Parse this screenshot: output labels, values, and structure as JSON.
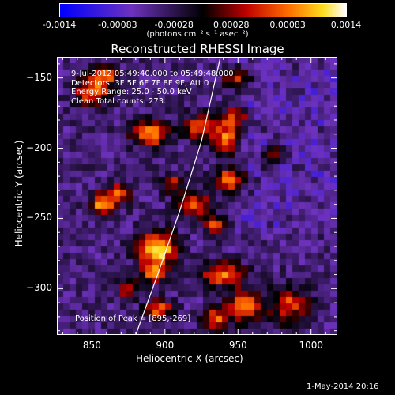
{
  "colorbar": {
    "ticks": [
      "-0.0014",
      "-0.00083",
      "-0.00028",
      "0.00028",
      "0.00083",
      "0.0014"
    ],
    "units_text": "(photons cm⁻² s⁻¹ asec⁻²)"
  },
  "chart_data": {
    "type": "heatmap",
    "title": "Reconstructed RHESSI Image",
    "xlabel": "Heliocentric X (arcsec)",
    "ylabel": "Heliocentric Y (arcsec)",
    "xlim": [
      826,
      1018
    ],
    "ylim": [
      -333,
      -135
    ],
    "x_ticks": [
      "850",
      "900",
      "950",
      "1000"
    ],
    "y_ticks": [
      "-150",
      "-200",
      "-250",
      "-300"
    ],
    "colorbar_range": [
      -0.0014,
      0.0014
    ],
    "colormap": "blue-purple-black-red-yellow-white",
    "peak": [
      895,
      -269
    ],
    "limb_curve": [
      [
        880,
        -333
      ],
      [
        895,
        -290
      ],
      [
        910,
        -245
      ],
      [
        925,
        -195
      ],
      [
        938,
        -135
      ]
    ],
    "blobs": [
      {
        "x": 895,
        "y": -272,
        "sx": 9,
        "sy": 8,
        "v": 0.0014
      },
      {
        "x": 892,
        "y": -289,
        "sx": 6,
        "sy": 5,
        "v": 0.0009
      },
      {
        "x": 896,
        "y": -315,
        "sx": 6,
        "sy": 5,
        "v": 0.0009
      },
      {
        "x": 890,
        "y": -190,
        "sx": 9,
        "sy": 6,
        "v": 0.001
      },
      {
        "x": 925,
        "y": -185,
        "sx": 8,
        "sy": 6,
        "v": 0.0009
      },
      {
        "x": 942,
        "y": -195,
        "sx": 6,
        "sy": 6,
        "v": 0.0009
      },
      {
        "x": 948,
        "y": -180,
        "sx": 6,
        "sy": 6,
        "v": 0.0008
      },
      {
        "x": 858,
        "y": -240,
        "sx": 6,
        "sy": 6,
        "v": 0.0011
      },
      {
        "x": 870,
        "y": -232,
        "sx": 5,
        "sy": 5,
        "v": 0.0008
      },
      {
        "x": 945,
        "y": -222,
        "sx": 7,
        "sy": 6,
        "v": 0.0009
      },
      {
        "x": 920,
        "y": -240,
        "sx": 8,
        "sy": 6,
        "v": 0.0008
      },
      {
        "x": 935,
        "y": -255,
        "sx": 5,
        "sy": 5,
        "v": 0.0007
      },
      {
        "x": 940,
        "y": -290,
        "sx": 10,
        "sy": 6,
        "v": 0.0009
      },
      {
        "x": 955,
        "y": -312,
        "sx": 8,
        "sy": 8,
        "v": 0.0009
      },
      {
        "x": 935,
        "y": -322,
        "sx": 6,
        "sy": 6,
        "v": 0.0008
      },
      {
        "x": 985,
        "y": -312,
        "sx": 9,
        "sy": 9,
        "v": 0.0007
      },
      {
        "x": 850,
        "y": -160,
        "sx": 8,
        "sy": 7,
        "v": 0.0009
      },
      {
        "x": 860,
        "y": -148,
        "sx": 6,
        "sy": 5,
        "v": 0.0008
      },
      {
        "x": 950,
        "y": -150,
        "sx": 6,
        "sy": 5,
        "v": 0.0007
      },
      {
        "x": 975,
        "y": -205,
        "sx": 5,
        "sy": 5,
        "v": 0.0005
      },
      {
        "x": 905,
        "y": -225,
        "sx": 5,
        "sy": 5,
        "v": 0.0006
      },
      {
        "x": 875,
        "y": -300,
        "sx": 5,
        "sy": 5,
        "v": 0.0005
      }
    ]
  },
  "annotations": {
    "time_range": "9-Jul-2012 05:49:40.000 to 05:49:48.000",
    "detectors": "Detectors: 3F 5F 6F 7F 8F 9F, Att 0",
    "energy": "Energy Range: 25.0 - 50.0 keV",
    "clean": "Clean    Total counts: 273.",
    "peak": "Position of Peak = [895,-269]"
  },
  "footer": {
    "date": "1-May-2014 20:16"
  }
}
